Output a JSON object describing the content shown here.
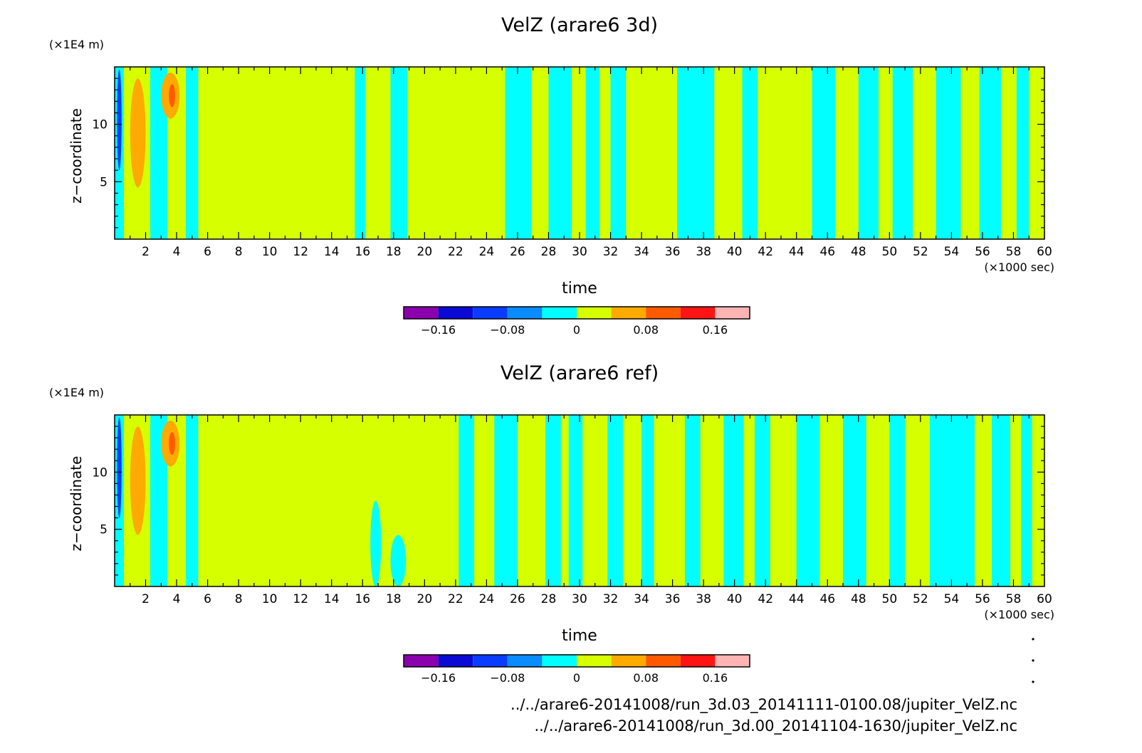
{
  "palette": [
    "#8a00ad",
    "#0a0ad4",
    "#0a3cff",
    "#0a8cff",
    "#00ffff",
    "#d6ff00",
    "#ffaa00",
    "#ff5a00",
    "#ff1414",
    "#ffb4b4"
  ],
  "colorbar_ticks": [
    -0.16,
    -0.08,
    0,
    0.08,
    0.16
  ],
  "colorbar_tick_labels": [
    "−0.16",
    "−0.08",
    "0",
    "0.08",
    "0.16"
  ],
  "x_tick_labels": [
    "2",
    "4",
    "6",
    "8",
    "10",
    "12",
    "14",
    "16",
    "18",
    "20",
    "22",
    "24",
    "26",
    "28",
    "30",
    "32",
    "34",
    "36",
    "38",
    "40",
    "42",
    "44",
    "46",
    "48",
    "50",
    "52",
    "54",
    "56",
    "58",
    "60"
  ],
  "y_tick_labels": [
    "5",
    "10"
  ],
  "chart_data": [
    {
      "type": "heatmap",
      "title": "VelZ (arare6 3d)",
      "xlabel": "time",
      "x_unit": "(×1000 sec)",
      "ylabel": "z−coordinate",
      "y_unit": "(×1E4 m)",
      "xlim": [
        0,
        60
      ],
      "ylim": [
        0,
        15
      ],
      "x_ticks": [
        2,
        4,
        6,
        8,
        10,
        12,
        14,
        16,
        18,
        20,
        22,
        24,
        26,
        28,
        30,
        32,
        34,
        36,
        38,
        40,
        42,
        44,
        46,
        48,
        50,
        52,
        54,
        56,
        58,
        60
      ],
      "y_ticks": [
        5,
        10
      ],
      "levels": [
        -0.2,
        -0.16,
        -0.12,
        -0.08,
        -0.04,
        0,
        0.04,
        0.08,
        0.12,
        0.16,
        0.2
      ],
      "velz_bands": [
        {
          "from": 0,
          "to": 0.6,
          "value": -0.02
        },
        {
          "from": 0.6,
          "to": 1.0,
          "value": 0.02
        },
        {
          "from": 1.0,
          "to": 2.3,
          "value": 0.02
        },
        {
          "from": 2.3,
          "to": 3.4,
          "value": -0.02
        },
        {
          "from": 3.4,
          "to": 4.6,
          "value": 0.02
        },
        {
          "from": 4.6,
          "to": 5.4,
          "value": -0.02
        },
        {
          "from": 5.4,
          "to": 15.5,
          "value": 0.02
        },
        {
          "from": 15.5,
          "to": 16.2,
          "value": -0.02
        },
        {
          "from": 16.2,
          "to": 17.8,
          "value": 0.02
        },
        {
          "from": 17.8,
          "to": 18.9,
          "value": -0.02
        },
        {
          "from": 18.9,
          "to": 25.2,
          "value": 0.02
        },
        {
          "from": 25.2,
          "to": 26.9,
          "value": -0.02
        },
        {
          "from": 26.9,
          "to": 28.0,
          "value": 0.02
        },
        {
          "from": 28.0,
          "to": 29.5,
          "value": -0.02
        },
        {
          "from": 29.5,
          "to": 30.4,
          "value": 0.02
        },
        {
          "from": 30.4,
          "to": 31.3,
          "value": -0.02
        },
        {
          "from": 31.3,
          "to": 32.0,
          "value": 0.02
        },
        {
          "from": 32.0,
          "to": 33.0,
          "value": -0.02
        },
        {
          "from": 33.0,
          "to": 36.3,
          "value": 0.02
        },
        {
          "from": 36.3,
          "to": 38.7,
          "value": -0.02
        },
        {
          "from": 38.7,
          "to": 40.5,
          "value": 0.02
        },
        {
          "from": 40.5,
          "to": 41.5,
          "value": -0.02
        },
        {
          "from": 41.5,
          "to": 45.0,
          "value": 0.02
        },
        {
          "from": 45.0,
          "to": 46.5,
          "value": -0.02
        },
        {
          "from": 46.5,
          "to": 48.0,
          "value": 0.02
        },
        {
          "from": 48.0,
          "to": 49.3,
          "value": -0.02
        },
        {
          "from": 49.3,
          "to": 50.2,
          "value": 0.02
        },
        {
          "from": 50.2,
          "to": 51.5,
          "value": -0.02
        },
        {
          "from": 51.5,
          "to": 53.0,
          "value": 0.02
        },
        {
          "from": 53.0,
          "to": 54.6,
          "value": -0.02
        },
        {
          "from": 54.6,
          "to": 55.8,
          "value": 0.02
        },
        {
          "from": 55.8,
          "to": 57.2,
          "value": -0.02
        },
        {
          "from": 57.2,
          "to": 58.2,
          "value": 0.02
        },
        {
          "from": 58.2,
          "to": 59.0,
          "value": -0.02
        },
        {
          "from": 59.0,
          "to": 60.0,
          "value": 0.02
        }
      ],
      "velz_cells": [
        {
          "x": [
            0.15,
            0.45
          ],
          "z": [
            6,
            14.8
          ],
          "value": -0.12
        },
        {
          "x": [
            1.0,
            2.0
          ],
          "z": [
            4.5,
            14
          ],
          "value": 0.06
        },
        {
          "x": [
            3.0,
            4.2
          ],
          "z": [
            10.5,
            14.5
          ],
          "value": 0.06
        },
        {
          "x": [
            3.5,
            3.9
          ],
          "z": [
            11.5,
            13.5
          ],
          "value": 0.1
        }
      ]
    },
    {
      "type": "heatmap",
      "title": "VelZ (arare6 ref)",
      "xlabel": "time",
      "x_unit": "(×1000 sec)",
      "ylabel": "z−coordinate",
      "y_unit": "(×1E4 m)",
      "xlim": [
        0,
        60
      ],
      "ylim": [
        0,
        15
      ],
      "x_ticks": [
        2,
        4,
        6,
        8,
        10,
        12,
        14,
        16,
        18,
        20,
        22,
        24,
        26,
        28,
        30,
        32,
        34,
        36,
        38,
        40,
        42,
        44,
        46,
        48,
        50,
        52,
        54,
        56,
        58,
        60
      ],
      "y_ticks": [
        5,
        10
      ],
      "levels": [
        -0.2,
        -0.16,
        -0.12,
        -0.08,
        -0.04,
        0,
        0.04,
        0.08,
        0.12,
        0.16,
        0.2
      ],
      "velz_bands": [
        {
          "from": 0,
          "to": 0.6,
          "value": -0.02
        },
        {
          "from": 0.6,
          "to": 1.0,
          "value": 0.02
        },
        {
          "from": 1.0,
          "to": 2.3,
          "value": 0.02
        },
        {
          "from": 2.3,
          "to": 3.4,
          "value": -0.02
        },
        {
          "from": 3.4,
          "to": 4.6,
          "value": 0.02
        },
        {
          "from": 4.6,
          "to": 5.4,
          "value": -0.02
        },
        {
          "from": 5.4,
          "to": 22.2,
          "value": 0.02
        },
        {
          "from": 22.2,
          "to": 23.2,
          "value": -0.02
        },
        {
          "from": 23.2,
          "to": 24.5,
          "value": 0.02
        },
        {
          "from": 24.5,
          "to": 26.0,
          "value": -0.02
        },
        {
          "from": 26.0,
          "to": 27.8,
          "value": 0.02
        },
        {
          "from": 27.8,
          "to": 28.8,
          "value": -0.02
        },
        {
          "from": 28.8,
          "to": 29.3,
          "value": 0.02
        },
        {
          "from": 29.3,
          "to": 30.2,
          "value": -0.02
        },
        {
          "from": 30.2,
          "to": 31.8,
          "value": 0.02
        },
        {
          "from": 31.8,
          "to": 32.8,
          "value": -0.02
        },
        {
          "from": 32.8,
          "to": 34.0,
          "value": 0.02
        },
        {
          "from": 34.0,
          "to": 34.8,
          "value": -0.02
        },
        {
          "from": 34.8,
          "to": 36.8,
          "value": 0.02
        },
        {
          "from": 36.8,
          "to": 37.8,
          "value": -0.02
        },
        {
          "from": 37.8,
          "to": 39.3,
          "value": 0.02
        },
        {
          "from": 39.3,
          "to": 40.6,
          "value": -0.02
        },
        {
          "from": 40.6,
          "to": 41.3,
          "value": 0.02
        },
        {
          "from": 41.3,
          "to": 42.3,
          "value": -0.02
        },
        {
          "from": 42.3,
          "to": 44.0,
          "value": 0.02
        },
        {
          "from": 44.0,
          "to": 45.5,
          "value": -0.02
        },
        {
          "from": 45.5,
          "to": 47.0,
          "value": 0.02
        },
        {
          "from": 47.0,
          "to": 48.5,
          "value": -0.02
        },
        {
          "from": 48.5,
          "to": 50.0,
          "value": 0.02
        },
        {
          "from": 50.0,
          "to": 51.0,
          "value": -0.02
        },
        {
          "from": 51.0,
          "to": 52.6,
          "value": 0.02
        },
        {
          "from": 52.6,
          "to": 55.5,
          "value": -0.02
        },
        {
          "from": 55.5,
          "to": 56.6,
          "value": 0.02
        },
        {
          "from": 56.6,
          "to": 57.8,
          "value": -0.02
        },
        {
          "from": 57.8,
          "to": 58.5,
          "value": 0.02
        },
        {
          "from": 58.5,
          "to": 59.2,
          "value": -0.02
        },
        {
          "from": 59.2,
          "to": 60.0,
          "value": 0.02
        }
      ],
      "velz_cells": [
        {
          "x": [
            0.15,
            0.45
          ],
          "z": [
            6,
            14.8
          ],
          "value": -0.12
        },
        {
          "x": [
            1.0,
            2.0
          ],
          "z": [
            4.5,
            14
          ],
          "value": 0.06
        },
        {
          "x": [
            3.0,
            4.2
          ],
          "z": [
            10.5,
            14.5
          ],
          "value": 0.06
        },
        {
          "x": [
            3.5,
            3.9
          ],
          "z": [
            11.5,
            13.5
          ],
          "value": 0.1
        },
        {
          "x": [
            16.5,
            17.2
          ],
          "z": [
            0,
            7.5
          ],
          "value": -0.02
        },
        {
          "x": [
            17.8,
            18.8
          ],
          "z": [
            0,
            4.5
          ],
          "value": -0.02
        }
      ]
    }
  ],
  "source_files": [
    "../../arare6-20141008/run_3d.03_20141111-0100.08/jupiter_VelZ.nc",
    "../../arare6-20141008/run_3d.00_20141104-1630/jupiter_VelZ.nc"
  ]
}
